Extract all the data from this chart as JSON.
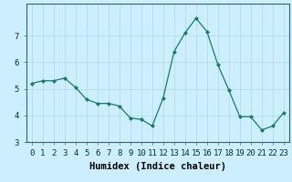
{
  "x": [
    0,
    1,
    2,
    3,
    4,
    5,
    6,
    7,
    8,
    9,
    10,
    11,
    12,
    13,
    14,
    15,
    16,
    17,
    18,
    19,
    20,
    21,
    22,
    23
  ],
  "y": [
    5.2,
    5.3,
    5.3,
    5.4,
    5.05,
    4.6,
    4.45,
    4.45,
    4.35,
    3.9,
    3.85,
    3.6,
    4.65,
    6.4,
    7.1,
    7.65,
    7.15,
    5.9,
    4.95,
    3.95,
    3.95,
    3.45,
    3.6,
    4.1
  ],
  "line_color": "#1a7a6e",
  "marker_color": "#1a7a6e",
  "bg_color": "#cceeff",
  "grid_color": "#aadddd",
  "xlabel": "Humidex (Indice chaleur)",
  "ylabel": "",
  "xlim": [
    -0.5,
    23.5
  ],
  "ylim": [
    3.0,
    8.2
  ],
  "yticks": [
    3,
    4,
    5,
    6,
    7
  ],
  "xticks": [
    0,
    1,
    2,
    3,
    4,
    5,
    6,
    7,
    8,
    9,
    10,
    11,
    12,
    13,
    14,
    15,
    16,
    17,
    18,
    19,
    20,
    21,
    22,
    23
  ],
  "tick_fontsize": 6.5,
  "label_fontsize": 7.5
}
